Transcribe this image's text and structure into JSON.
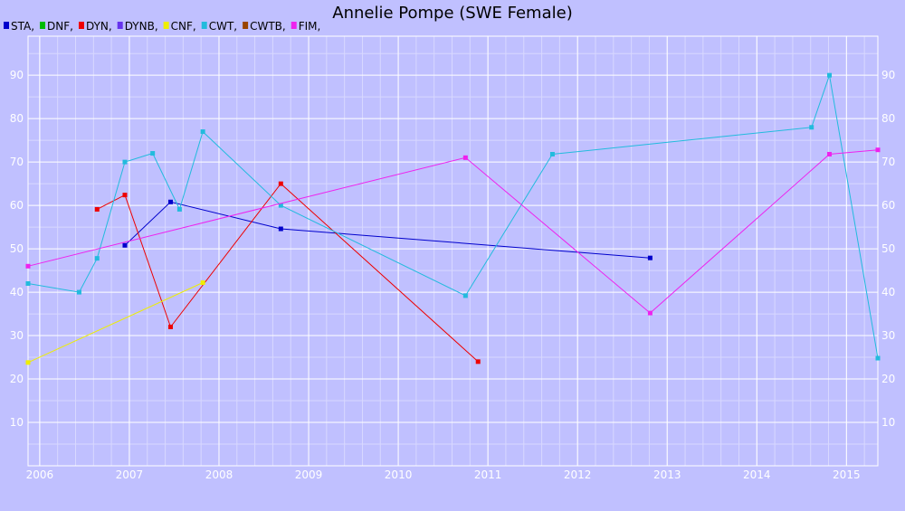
{
  "chart_data": {
    "type": "line",
    "title": "Annelie Pompe (SWE Female)",
    "xlabel": "",
    "ylabel": "",
    "xlim": [
      2005.87,
      2015.35
    ],
    "ylim": [
      0,
      99
    ],
    "x_ticks": [
      2006,
      2007,
      2008,
      2009,
      2010,
      2011,
      2012,
      2013,
      2014,
      2015
    ],
    "y_ticks": [
      10,
      20,
      30,
      40,
      50,
      60,
      70,
      80,
      90
    ],
    "legend_position": "top-left",
    "series": [
      {
        "name": "STA",
        "legend_label": "STA,",
        "color": "#0000cc",
        "points": [
          [
            2006.95,
            50.8
          ],
          [
            2007.46,
            60.8
          ],
          [
            2008.69,
            54.6
          ],
          [
            2012.81,
            47.9
          ]
        ]
      },
      {
        "name": "DNF",
        "legend_label": "DNF,",
        "color": "#00bb00",
        "points": []
      },
      {
        "name": "DYN",
        "legend_label": "DYN,",
        "color": "#ee0000",
        "points": [
          [
            2006.64,
            59.1
          ],
          [
            2006.95,
            62.4
          ],
          [
            2007.46,
            32.0
          ],
          [
            2008.69,
            65.0
          ],
          [
            2010.89,
            24.0
          ]
        ]
      },
      {
        "name": "DYNB",
        "legend_label": "DYNB,",
        "color": "#6633ee",
        "points": []
      },
      {
        "name": "CNF",
        "legend_label": "CNF,",
        "color": "#eeee00",
        "points": [
          [
            2005.87,
            23.8
          ],
          [
            2007.82,
            42.2
          ]
        ]
      },
      {
        "name": "CWT",
        "legend_label": "CWT,",
        "color": "#22bbdd",
        "points": [
          [
            2005.87,
            42.0
          ],
          [
            2006.44,
            40.0
          ],
          [
            2006.64,
            47.8
          ],
          [
            2006.95,
            70.0
          ],
          [
            2007.26,
            72.0
          ],
          [
            2007.56,
            59.1
          ],
          [
            2007.82,
            77.0
          ],
          [
            2008.69,
            60.0
          ],
          [
            2010.75,
            39.2
          ],
          [
            2011.72,
            71.8
          ],
          [
            2014.61,
            78.0
          ],
          [
            2014.81,
            90.0
          ],
          [
            2015.35,
            24.8
          ]
        ]
      },
      {
        "name": "CWTB",
        "legend_label": "CWTB,",
        "color": "#994400",
        "points": []
      },
      {
        "name": "FIM",
        "legend_label": "FIM,",
        "color": "#ee22ee",
        "points": [
          [
            2005.87,
            46.0
          ],
          [
            2010.75,
            71.0
          ],
          [
            2012.81,
            35.2
          ],
          [
            2014.81,
            71.8
          ],
          [
            2015.35,
            72.8
          ]
        ]
      }
    ]
  }
}
